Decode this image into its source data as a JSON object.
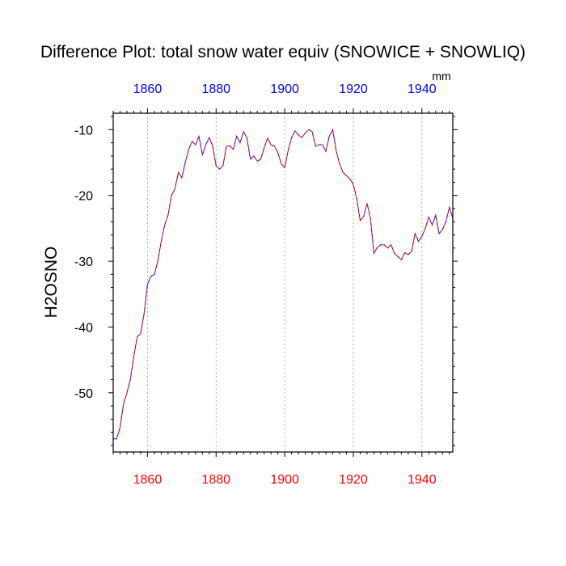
{
  "chart_data": {
    "type": "line",
    "title": "Difference Plot: total snow water equiv (SNOWICE + SNOWLIQ)",
    "units": "mm",
    "ylabel": "H2OSNO",
    "xlabel": "",
    "xlim": [
      1850,
      1949
    ],
    "ylim": [
      -59,
      -7.5
    ],
    "x_ticks": [
      1860,
      1880,
      1900,
      1920,
      1940
    ],
    "y_ticks": [
      -10,
      -20,
      -30,
      -40,
      -50
    ],
    "x_tick_labels": [
      "1860",
      "1880",
      "1900",
      "1920",
      "1940"
    ],
    "y_tick_labels": [
      "-10",
      "-20",
      "-30",
      "-40",
      "-50"
    ],
    "bottom_axis_color": "#ff0000",
    "top_axis_color": "#0000ff",
    "vertical_grid": "dashed at major x ticks",
    "series": [
      {
        "line_colors": [
          "#0000ff",
          "#ff0000"
        ],
        "style": "dashed",
        "x": [
          1850,
          1851,
          1852,
          1853,
          1854,
          1855,
          1856,
          1857,
          1858,
          1859,
          1860,
          1861,
          1862,
          1863,
          1864,
          1865,
          1866,
          1867,
          1868,
          1869,
          1870,
          1871,
          1872,
          1873,
          1874,
          1875,
          1876,
          1877,
          1878,
          1879,
          1880,
          1881,
          1882,
          1883,
          1884,
          1885,
          1886,
          1887,
          1888,
          1889,
          1890,
          1891,
          1892,
          1893,
          1894,
          1895,
          1896,
          1897,
          1898,
          1899,
          1900,
          1901,
          1902,
          1903,
          1904,
          1905,
          1906,
          1907,
          1908,
          1909,
          1910,
          1911,
          1912,
          1913,
          1914,
          1915,
          1916,
          1917,
          1918,
          1919,
          1920,
          1921,
          1922,
          1923,
          1924,
          1925,
          1926,
          1927,
          1928,
          1929,
          1930,
          1931,
          1932,
          1933,
          1934,
          1935,
          1936,
          1937,
          1938,
          1939,
          1940,
          1941,
          1942,
          1943,
          1944,
          1945,
          1946,
          1947,
          1948,
          1949
        ],
        "y": [
          -57,
          -57,
          -55.3,
          -51.7,
          -50,
          -48,
          -44.5,
          -41.5,
          -41,
          -38,
          -33.5,
          -32.3,
          -32,
          -30,
          -27,
          -24.5,
          -23,
          -20,
          -19,
          -16.5,
          -17.3,
          -15,
          -13,
          -11.8,
          -12.3,
          -11,
          -13.8,
          -12.3,
          -11.2,
          -12.5,
          -15.5,
          -16,
          -15.5,
          -12.5,
          -12.5,
          -13,
          -11,
          -12,
          -10.3,
          -11.3,
          -14.5,
          -14,
          -14.8,
          -14.5,
          -12.8,
          -11.3,
          -12.3,
          -12.5,
          -13.5,
          -15.2,
          -15.8,
          -13.2,
          -11.2,
          -10.2,
          -10.8,
          -11.2,
          -10.5,
          -10,
          -10.3,
          -12.5,
          -12.3,
          -12.3,
          -13.3,
          -11,
          -10,
          -13.2,
          -15.2,
          -16.5,
          -17,
          -17.5,
          -18.3,
          -20.5,
          -23.8,
          -23.2,
          -21.2,
          -23.5,
          -28.8,
          -27.9,
          -27.5,
          -27.5,
          -28,
          -27.5,
          -28.8,
          -29.3,
          -29.8,
          -28.7,
          -29,
          -28.5,
          -25.8,
          -27,
          -26.2,
          -25,
          -23.3,
          -24.5,
          -23,
          -25.8,
          -25.2,
          -24,
          -21.8,
          -23.5
        ]
      }
    ]
  }
}
